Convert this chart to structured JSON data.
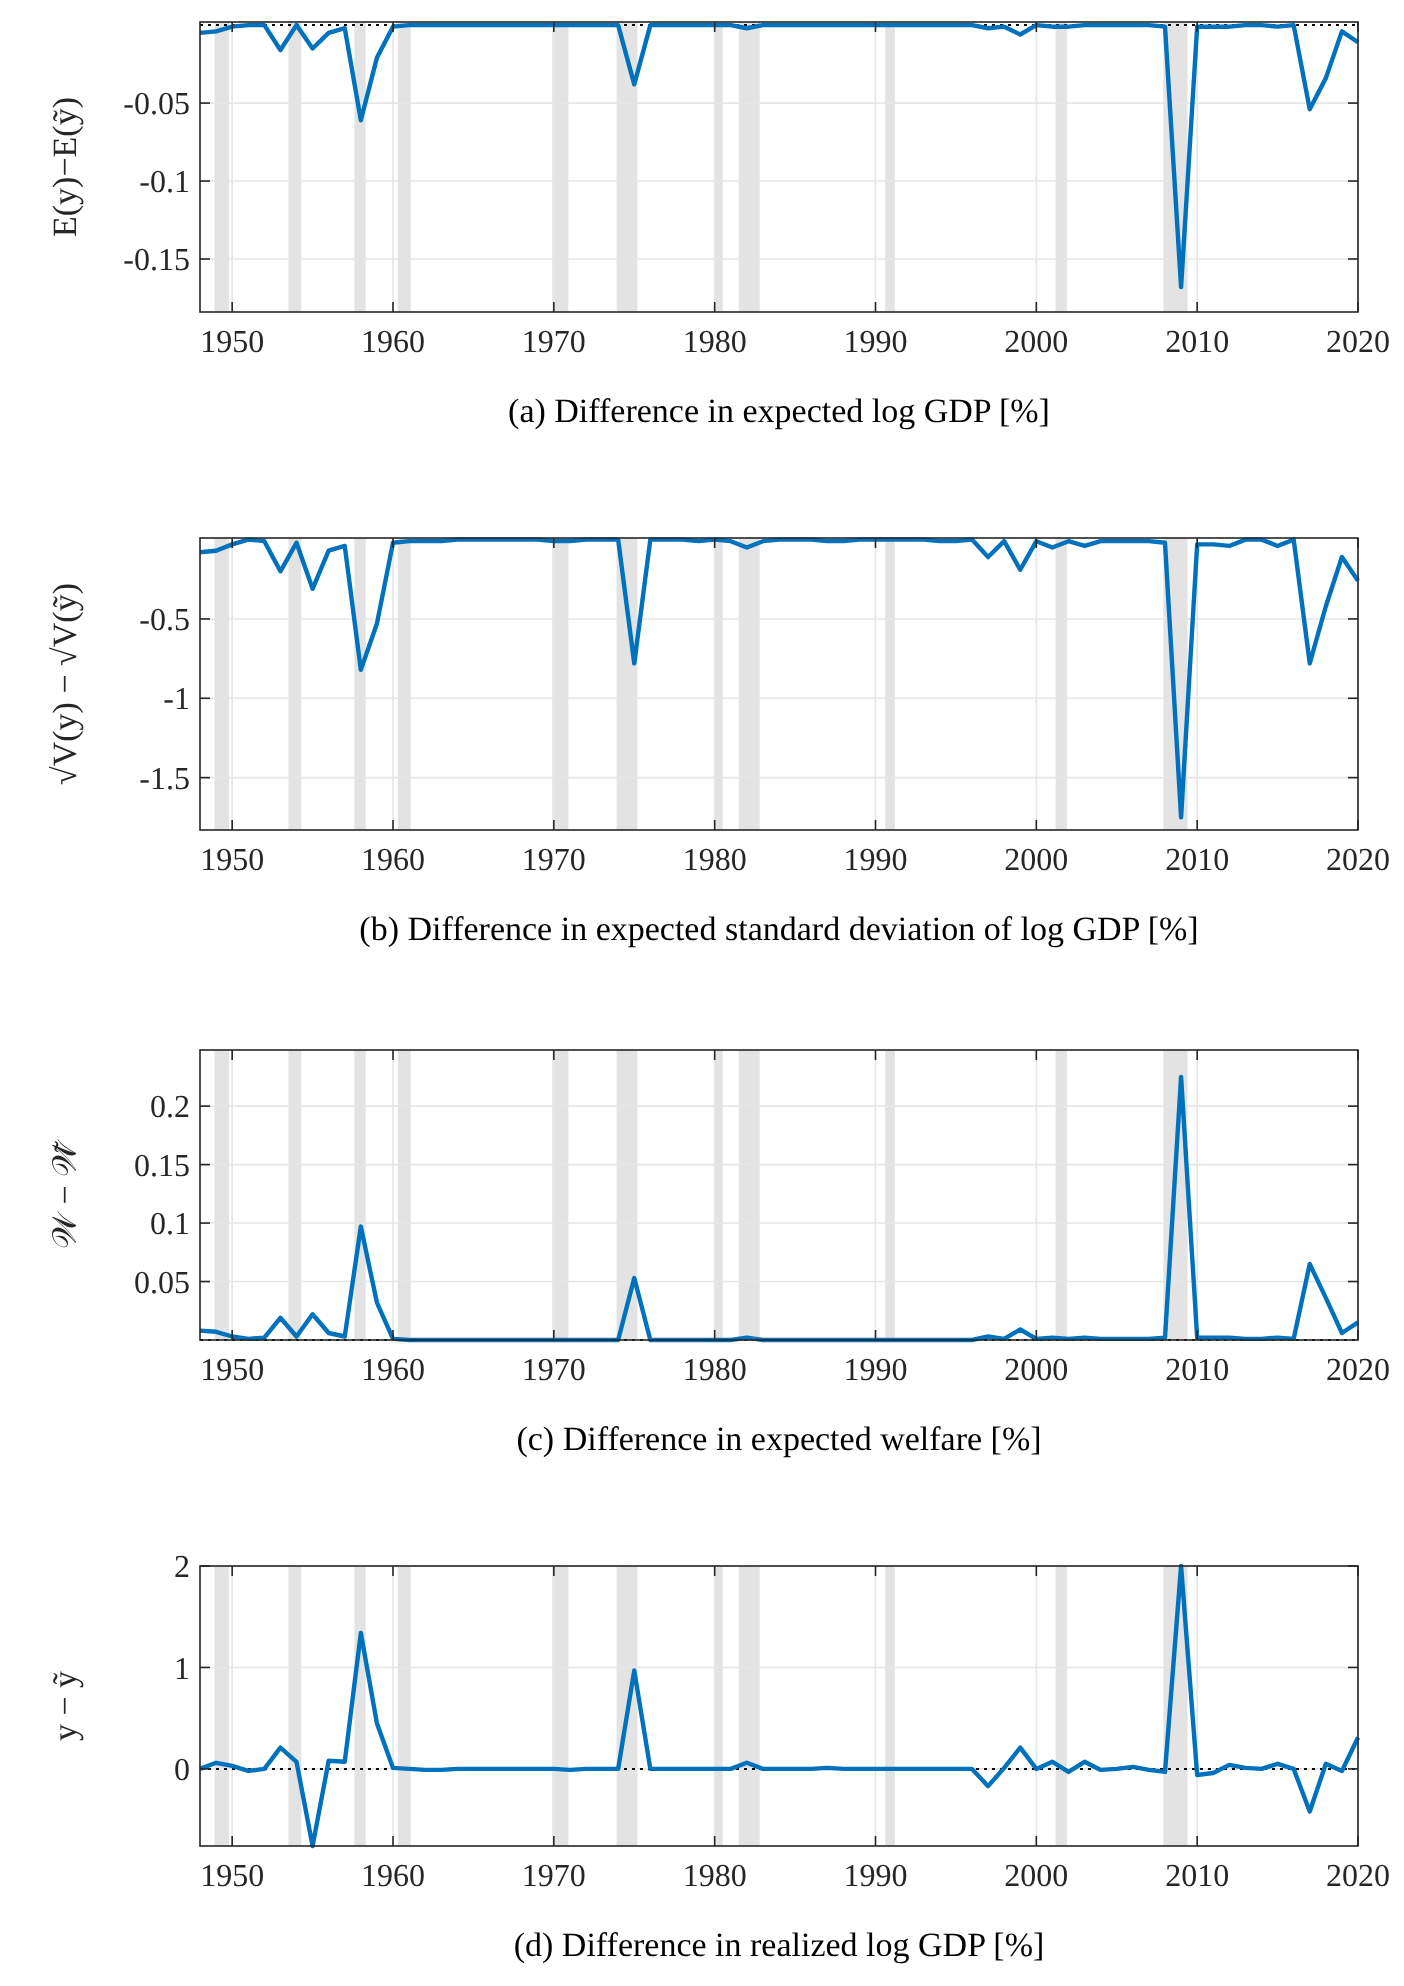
{
  "chart_data": [
    {
      "type": "line",
      "title": "(a) Difference in expected log GDP [%]",
      "ylabel": "E(y)−E(ỹ)",
      "x": [
        1948,
        1949,
        1950,
        1951,
        1952,
        1953,
        1954,
        1955,
        1956,
        1957,
        1958,
        1959,
        1960,
        1961,
        1962,
        1963,
        1964,
        1965,
        1966,
        1967,
        1968,
        1969,
        1970,
        1971,
        1972,
        1973,
        1974,
        1975,
        1976,
        1977,
        1978,
        1979,
        1980,
        1981,
        1982,
        1983,
        1984,
        1985,
        1986,
        1987,
        1988,
        1989,
        1990,
        1991,
        1992,
        1993,
        1994,
        1995,
        1996,
        1997,
        1998,
        1999,
        2000,
        2001,
        2002,
        2003,
        2004,
        2005,
        2006,
        2007,
        2008,
        2009,
        2010,
        2011,
        2012,
        2013,
        2014,
        2015,
        2016,
        2017,
        2018,
        2019,
        2020
      ],
      "xlim": [
        1948,
        2020
      ],
      "xticks": [
        1950,
        1960,
        1970,
        1980,
        1990,
        2000,
        2010,
        2020
      ],
      "ylim": [
        -0.184,
        0.002
      ],
      "yticks": [
        -0.15,
        -0.1,
        -0.05
      ],
      "grid": true,
      "series": [
        {
          "color": "#0072bd",
          "values": [
            -0.005,
            -0.004,
            -0.001,
            0,
            0,
            -0.016,
            0,
            -0.015,
            -0.005,
            -0.002,
            -0.061,
            -0.021,
            -0.001,
            0,
            0,
            0,
            0,
            0,
            0,
            0,
            0,
            0,
            0,
            0,
            0,
            0,
            0,
            -0.038,
            0,
            0,
            0,
            0,
            0,
            0,
            -0.002,
            0,
            0,
            0,
            0,
            0,
            0,
            0,
            0,
            0,
            0,
            0,
            0,
            0,
            0,
            -0.002,
            -0.001,
            -0.006,
            0,
            -0.001,
            -0.001,
            0,
            0,
            0,
            0,
            0,
            -0.001,
            -0.168,
            -0.001,
            -0.001,
            -0.001,
            0,
            0,
            -0.001,
            0,
            -0.054,
            -0.034,
            -0.004,
            -0.011
          ]
        }
      ],
      "ref_lines": [
        {
          "axis": "y",
          "value": 0,
          "color": "#000000",
          "line_style": "dotted"
        }
      ],
      "bands": [
        {
          "axis": "x",
          "from": 1948.9,
          "to": 1949.8,
          "color": "#e3e3e3"
        },
        {
          "axis": "x",
          "from": 1953.5,
          "to": 1954.3,
          "color": "#e3e3e3"
        },
        {
          "axis": "x",
          "from": 1957.6,
          "to": 1958.3,
          "color": "#e3e3e3"
        },
        {
          "axis": "x",
          "from": 1960.3,
          "to": 1961.1,
          "color": "#e3e3e3"
        },
        {
          "axis": "x",
          "from": 1969.9,
          "to": 1970.9,
          "color": "#e3e3e3"
        },
        {
          "axis": "x",
          "from": 1973.9,
          "to": 1975.2,
          "color": "#e3e3e3"
        },
        {
          "axis": "x",
          "from": 1980,
          "to": 1980.5,
          "color": "#e3e3e3"
        },
        {
          "axis": "x",
          "from": 1981.5,
          "to": 1982.8,
          "color": "#e3e3e3"
        },
        {
          "axis": "x",
          "from": 1990.6,
          "to": 1991.2,
          "color": "#e3e3e3"
        },
        {
          "axis": "x",
          "from": 2001.2,
          "to": 2001.9,
          "color": "#e3e3e3"
        },
        {
          "axis": "x",
          "from": 2007.9,
          "to": 2009.4,
          "color": "#e3e3e3"
        }
      ]
    },
    {
      "type": "line",
      "title": "(b) Difference in expected standard deviation of log GDP [%]",
      "ylabel": "√V(y) − √V(ỹ)",
      "x": [
        1948,
        1949,
        1950,
        1951,
        1952,
        1953,
        1954,
        1955,
        1956,
        1957,
        1958,
        1959,
        1960,
        1961,
        1962,
        1963,
        1964,
        1965,
        1966,
        1967,
        1968,
        1969,
        1970,
        1971,
        1972,
        1973,
        1974,
        1975,
        1976,
        1977,
        1978,
        1979,
        1980,
        1981,
        1982,
        1983,
        1984,
        1985,
        1986,
        1987,
        1988,
        1989,
        1990,
        1991,
        1992,
        1993,
        1994,
        1995,
        1996,
        1997,
        1998,
        1999,
        2000,
        2001,
        2002,
        2003,
        2004,
        2005,
        2006,
        2007,
        2008,
        2009,
        2010,
        2011,
        2012,
        2013,
        2014,
        2015,
        2016,
        2017,
        2018,
        2019,
        2020
      ],
      "xlim": [
        1948,
        2020
      ],
      "xticks": [
        1950,
        1960,
        1970,
        1980,
        1990,
        2000,
        2010,
        2020
      ],
      "ylim": [
        -1.83,
        0.01
      ],
      "yticks": [
        -1.5,
        -1,
        -0.5
      ],
      "grid": true,
      "series": [
        {
          "color": "#0072bd",
          "values": [
            -0.08,
            -0.07,
            -0.03,
            0,
            -0.01,
            -0.2,
            -0.02,
            -0.31,
            -0.07,
            -0.04,
            -0.82,
            -0.53,
            -0.02,
            -0.01,
            -0.01,
            -0.01,
            0,
            0,
            0,
            0,
            0,
            0,
            -0.01,
            -0.01,
            0,
            0,
            0,
            -0.78,
            0,
            0,
            0,
            -0.01,
            0,
            -0.01,
            -0.05,
            -0.01,
            0,
            0,
            0,
            -0.01,
            -0.01,
            0,
            0,
            0,
            0,
            0,
            -0.01,
            -0.01,
            0,
            -0.11,
            -0.01,
            -0.19,
            -0.01,
            -0.05,
            -0.01,
            -0.04,
            -0.01,
            -0.01,
            -0.01,
            -0.01,
            -0.02,
            -1.75,
            -0.03,
            -0.03,
            -0.04,
            0,
            0,
            -0.04,
            0,
            -0.78,
            -0.42,
            -0.11,
            -0.26
          ]
        }
      ],
      "bands": [
        {
          "axis": "x",
          "from": 1948.9,
          "to": 1949.8,
          "color": "#e3e3e3"
        },
        {
          "axis": "x",
          "from": 1953.5,
          "to": 1954.3,
          "color": "#e3e3e3"
        },
        {
          "axis": "x",
          "from": 1957.6,
          "to": 1958.3,
          "color": "#e3e3e3"
        },
        {
          "axis": "x",
          "from": 1960.3,
          "to": 1961.1,
          "color": "#e3e3e3"
        },
        {
          "axis": "x",
          "from": 1969.9,
          "to": 1970.9,
          "color": "#e3e3e3"
        },
        {
          "axis": "x",
          "from": 1973.9,
          "to": 1975.2,
          "color": "#e3e3e3"
        },
        {
          "axis": "x",
          "from": 1980,
          "to": 1980.5,
          "color": "#e3e3e3"
        },
        {
          "axis": "x",
          "from": 1981.5,
          "to": 1982.8,
          "color": "#e3e3e3"
        },
        {
          "axis": "x",
          "from": 1990.6,
          "to": 1991.2,
          "color": "#e3e3e3"
        },
        {
          "axis": "x",
          "from": 2001.2,
          "to": 2001.9,
          "color": "#e3e3e3"
        },
        {
          "axis": "x",
          "from": 2007.9,
          "to": 2009.4,
          "color": "#e3e3e3"
        }
      ]
    },
    {
      "type": "line",
      "title": "(c) Difference in expected welfare [%]",
      "ylabel": "𝒲 − 𝒲̃",
      "x": [
        1948,
        1949,
        1950,
        1951,
        1952,
        1953,
        1954,
        1955,
        1956,
        1957,
        1958,
        1959,
        1960,
        1961,
        1962,
        1963,
        1964,
        1965,
        1966,
        1967,
        1968,
        1969,
        1970,
        1971,
        1972,
        1973,
        1974,
        1975,
        1976,
        1977,
        1978,
        1979,
        1980,
        1981,
        1982,
        1983,
        1984,
        1985,
        1986,
        1987,
        1988,
        1989,
        1990,
        1991,
        1992,
        1993,
        1994,
        1995,
        1996,
        1997,
        1998,
        1999,
        2000,
        2001,
        2002,
        2003,
        2004,
        2005,
        2006,
        2007,
        2008,
        2009,
        2010,
        2011,
        2012,
        2013,
        2014,
        2015,
        2016,
        2017,
        2018,
        2019,
        2020
      ],
      "xlim": [
        1948,
        2020
      ],
      "xticks": [
        1950,
        1960,
        1970,
        1980,
        1990,
        2000,
        2010,
        2020
      ],
      "ylim": [
        0,
        0.248
      ],
      "yticks": [
        0.05,
        0.1,
        0.15,
        0.2
      ],
      "grid": true,
      "series": [
        {
          "color": "#0072bd",
          "values": [
            0.008,
            0.007,
            0.003,
            0.001,
            0.002,
            0.019,
            0.003,
            0.022,
            0.006,
            0.003,
            0.097,
            0.032,
            0.001,
            0,
            0,
            0,
            0,
            0,
            0,
            0,
            0,
            0,
            0,
            0,
            0,
            0,
            0,
            0.053,
            0,
            0,
            0,
            0,
            0,
            0,
            0.002,
            0,
            0,
            0,
            0,
            0,
            0,
            0,
            0,
            0,
            0,
            0,
            0,
            0,
            0,
            0.003,
            0.001,
            0.009,
            0.001,
            0.002,
            0.001,
            0.002,
            0.001,
            0.001,
            0.001,
            0.001,
            0.002,
            0.225,
            0.002,
            0.002,
            0.002,
            0.001,
            0.001,
            0.002,
            0.001,
            0.065,
            0.036,
            0.006,
            0.015
          ]
        }
      ],
      "ref_lines": [
        {
          "axis": "y",
          "value": 0,
          "color": "#000000",
          "line_style": "dotted"
        }
      ],
      "bands": [
        {
          "axis": "x",
          "from": 1948.9,
          "to": 1949.8,
          "color": "#e3e3e3"
        },
        {
          "axis": "x",
          "from": 1953.5,
          "to": 1954.3,
          "color": "#e3e3e3"
        },
        {
          "axis": "x",
          "from": 1957.6,
          "to": 1958.3,
          "color": "#e3e3e3"
        },
        {
          "axis": "x",
          "from": 1960.3,
          "to": 1961.1,
          "color": "#e3e3e3"
        },
        {
          "axis": "x",
          "from": 1969.9,
          "to": 1970.9,
          "color": "#e3e3e3"
        },
        {
          "axis": "x",
          "from": 1973.9,
          "to": 1975.2,
          "color": "#e3e3e3"
        },
        {
          "axis": "x",
          "from": 1980,
          "to": 1980.5,
          "color": "#e3e3e3"
        },
        {
          "axis": "x",
          "from": 1981.5,
          "to": 1982.8,
          "color": "#e3e3e3"
        },
        {
          "axis": "x",
          "from": 1990.6,
          "to": 1991.2,
          "color": "#e3e3e3"
        },
        {
          "axis": "x",
          "from": 2001.2,
          "to": 2001.9,
          "color": "#e3e3e3"
        },
        {
          "axis": "x",
          "from": 2007.9,
          "to": 2009.4,
          "color": "#e3e3e3"
        }
      ]
    },
    {
      "type": "line",
      "title": "(d) Difference in realized log GDP [%]",
      "ylabel": "y − ỹ",
      "x": [
        1948,
        1949,
        1950,
        1951,
        1952,
        1953,
        1954,
        1955,
        1956,
        1957,
        1958,
        1959,
        1960,
        1961,
        1962,
        1963,
        1964,
        1965,
        1966,
        1967,
        1968,
        1969,
        1970,
        1971,
        1972,
        1973,
        1974,
        1975,
        1976,
        1977,
        1978,
        1979,
        1980,
        1981,
        1982,
        1983,
        1984,
        1985,
        1986,
        1987,
        1988,
        1989,
        1990,
        1991,
        1992,
        1993,
        1994,
        1995,
        1996,
        1997,
        1998,
        1999,
        2000,
        2001,
        2002,
        2003,
        2004,
        2005,
        2006,
        2007,
        2008,
        2009,
        2010,
        2011,
        2012,
        2013,
        2014,
        2015,
        2016,
        2017,
        2018,
        2019,
        2020
      ],
      "xlim": [
        1948,
        2020
      ],
      "xticks": [
        1950,
        1960,
        1970,
        1980,
        1990,
        2000,
        2010,
        2020
      ],
      "ylim": [
        -0.76,
        2
      ],
      "yticks": [
        0,
        1,
        2
      ],
      "grid": true,
      "series": [
        {
          "color": "#0072bd",
          "values": [
            0,
            0.06,
            0.03,
            -0.02,
            0,
            0.21,
            0.07,
            -0.76,
            0.08,
            0.07,
            1.34,
            0.45,
            0.01,
            0,
            -0.01,
            -0.01,
            0,
            0,
            0,
            0,
            0,
            0,
            0,
            -0.01,
            0,
            0,
            0,
            0.97,
            0,
            0,
            0,
            0,
            0,
            0,
            0.06,
            0,
            0,
            0,
            0,
            0.01,
            0,
            0,
            0,
            0,
            0,
            0,
            0,
            0,
            0,
            -0.17,
            0.01,
            0.21,
            0,
            0.07,
            -0.03,
            0.07,
            -0.01,
            0,
            0.02,
            -0.01,
            -0.03,
            2,
            -0.06,
            -0.04,
            0.04,
            0.01,
            0,
            0.05,
            0,
            -0.42,
            0.05,
            -0.02,
            0.31
          ]
        }
      ],
      "ref_lines": [
        {
          "axis": "y",
          "value": 0,
          "color": "#000000",
          "line_style": "dotted"
        }
      ],
      "bands": [
        {
          "axis": "x",
          "from": 1948.9,
          "to": 1949.8,
          "color": "#e3e3e3"
        },
        {
          "axis": "x",
          "from": 1953.5,
          "to": 1954.3,
          "color": "#e3e3e3"
        },
        {
          "axis": "x",
          "from": 1957.6,
          "to": 1958.3,
          "color": "#e3e3e3"
        },
        {
          "axis": "x",
          "from": 1960.3,
          "to": 1961.1,
          "color": "#e3e3e3"
        },
        {
          "axis": "x",
          "from": 1969.9,
          "to": 1970.9,
          "color": "#e3e3e3"
        },
        {
          "axis": "x",
          "from": 1973.9,
          "to": 1975.2,
          "color": "#e3e3e3"
        },
        {
          "axis": "x",
          "from": 1980,
          "to": 1980.5,
          "color": "#e3e3e3"
        },
        {
          "axis": "x",
          "from": 1981.5,
          "to": 1982.8,
          "color": "#e3e3e3"
        },
        {
          "axis": "x",
          "from": 1990.6,
          "to": 1991.2,
          "color": "#e3e3e3"
        },
        {
          "axis": "x",
          "from": 2001.2,
          "to": 2001.9,
          "color": "#e3e3e3"
        },
        {
          "axis": "x",
          "from": 2007.9,
          "to": 2009.4,
          "color": "#e3e3e3"
        }
      ]
    }
  ]
}
